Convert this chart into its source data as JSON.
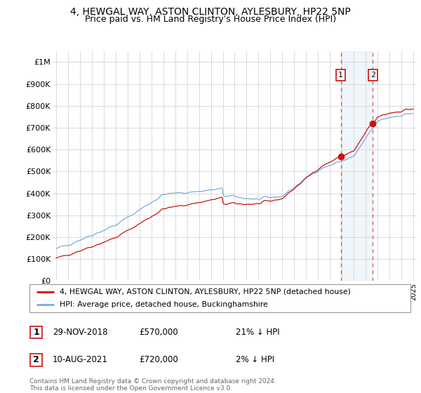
{
  "title": "4, HEWGAL WAY, ASTON CLINTON, AYLESBURY, HP22 5NP",
  "subtitle": "Price paid vs. HM Land Registry's House Price Index (HPI)",
  "ylabel_ticks": [
    "£0",
    "£100K",
    "£200K",
    "£300K",
    "£400K",
    "£500K",
    "£600K",
    "£700K",
    "£800K",
    "£900K",
    "£1M"
  ],
  "ytick_values": [
    0,
    100000,
    200000,
    300000,
    400000,
    500000,
    600000,
    700000,
    800000,
    900000,
    1000000
  ],
  "ylim": [
    0,
    1050000
  ],
  "xlim_start": 1994.7,
  "xlim_end": 2025.3,
  "hpi_color": "#7aabdb",
  "price_color": "#cc1111",
  "transaction1_date": 2018.91,
  "transaction1_price": 570000,
  "transaction2_date": 2021.61,
  "transaction2_price": 720000,
  "legend_line1": "4, HEWGAL WAY, ASTON CLINTON, AYLESBURY, HP22 5NP (detached house)",
  "legend_line2": "HPI: Average price, detached house, Buckinghamshire",
  "table_row1": [
    "1",
    "29-NOV-2018",
    "£570,000",
    "21% ↓ HPI"
  ],
  "table_row2": [
    "2",
    "10-AUG-2021",
    "£720,000",
    "2% ↓ HPI"
  ],
  "footnote": "Contains HM Land Registry data © Crown copyright and database right 2024.\nThis data is licensed under the Open Government Licence v3.0.",
  "grid_color": "#cccccc",
  "title_fontsize": 10,
  "subtitle_fontsize": 9
}
